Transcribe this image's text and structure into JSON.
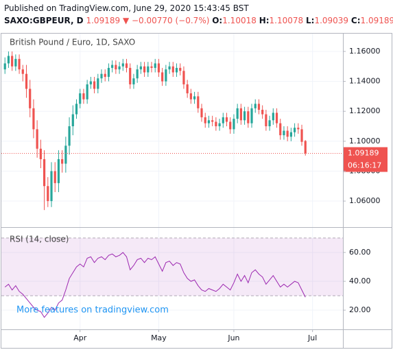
{
  "header": {
    "published": "Published on TradingView.com, June 29, 2020 15:43:45 BST",
    "symbol": "SAXO:GBPEUR, D",
    "arrow": "▼",
    "change": "−0.00770 (−0.7%)",
    "o": "O:",
    "h": "H:",
    "l": "L:",
    "c": "C:"
  },
  "chart_data": [
    {
      "type": "candlestick",
      "title": "British Pound / Euro, 1D, SAXO",
      "up_color": "#26a69a",
      "down_color": "#ef5350",
      "open": [
        1.148,
        1.152,
        1.157,
        1.15,
        1.155,
        1.148,
        1.145,
        1.135,
        1.122,
        1.108,
        1.095,
        1.088,
        1.07,
        1.06,
        1.08,
        1.072,
        1.088,
        1.085,
        1.097,
        1.11,
        1.118,
        1.125,
        1.132,
        1.128,
        1.138,
        1.14,
        1.135,
        1.142,
        1.145,
        1.143,
        1.149,
        1.151,
        1.148,
        1.15,
        1.152,
        1.149,
        1.138,
        1.142,
        1.148,
        1.15,
        1.146,
        1.15,
        1.149,
        1.152,
        1.146,
        1.14,
        1.148,
        1.15,
        1.146,
        1.149,
        1.147,
        1.138,
        1.132,
        1.128,
        1.13,
        1.122,
        1.116,
        1.112,
        1.114,
        1.113,
        1.11,
        1.112,
        1.116,
        1.113,
        1.108,
        1.115,
        1.122,
        1.114,
        1.12,
        1.112,
        1.122,
        1.125,
        1.121,
        1.118,
        1.11,
        1.114,
        1.119,
        1.112,
        1.104,
        1.107,
        1.103,
        1.106,
        1.109,
        1.108,
        1.10018
      ],
      "high": [
        1.156,
        1.16,
        1.16,
        1.158,
        1.158,
        1.151,
        1.151,
        1.141,
        1.128,
        1.114,
        1.101,
        1.094,
        1.076,
        1.086,
        1.086,
        1.094,
        1.094,
        1.103,
        1.116,
        1.124,
        1.128,
        1.135,
        1.135,
        1.141,
        1.143,
        1.143,
        1.145,
        1.148,
        1.148,
        1.152,
        1.154,
        1.154,
        1.153,
        1.155,
        1.155,
        1.152,
        1.145,
        1.151,
        1.153,
        1.153,
        1.153,
        1.153,
        1.155,
        1.155,
        1.149,
        1.151,
        1.153,
        1.153,
        1.152,
        1.152,
        1.15,
        1.141,
        1.135,
        1.133,
        1.133,
        1.125,
        1.119,
        1.117,
        1.117,
        1.116,
        1.115,
        1.119,
        1.119,
        1.116,
        1.118,
        1.125,
        1.125,
        1.123,
        1.123,
        1.125,
        1.128,
        1.128,
        1.124,
        1.121,
        1.117,
        1.122,
        1.122,
        1.115,
        1.11,
        1.11,
        1.109,
        1.112,
        1.112,
        1.111,
        1.10078
      ],
      "low": [
        1.145,
        1.149,
        1.147,
        1.147,
        1.145,
        1.14,
        1.129,
        1.116,
        1.102,
        1.089,
        1.082,
        1.054,
        1.056,
        1.056,
        1.066,
        1.066,
        1.079,
        1.079,
        1.091,
        1.104,
        1.115,
        1.122,
        1.125,
        1.125,
        1.135,
        1.132,
        1.132,
        1.139,
        1.14,
        1.14,
        1.146,
        1.145,
        1.145,
        1.147,
        1.146,
        1.135,
        1.135,
        1.139,
        1.145,
        1.143,
        1.143,
        1.146,
        1.146,
        1.143,
        1.137,
        1.137,
        1.145,
        1.143,
        1.143,
        1.144,
        1.135,
        1.129,
        1.125,
        1.125,
        1.119,
        1.113,
        1.109,
        1.109,
        1.11,
        1.107,
        1.107,
        1.109,
        1.11,
        1.105,
        1.105,
        1.112,
        1.111,
        1.111,
        1.109,
        1.109,
        1.119,
        1.118,
        1.115,
        1.107,
        1.107,
        1.111,
        1.109,
        1.101,
        1.101,
        1.1,
        1.1,
        1.103,
        1.105,
        1.097,
        1.09039
      ],
      "close": [
        1.152,
        1.157,
        1.15,
        1.155,
        1.148,
        1.145,
        1.135,
        1.122,
        1.108,
        1.095,
        1.088,
        1.07,
        1.06,
        1.08,
        1.072,
        1.088,
        1.085,
        1.097,
        1.11,
        1.118,
        1.125,
        1.132,
        1.128,
        1.138,
        1.14,
        1.135,
        1.142,
        1.145,
        1.143,
        1.149,
        1.151,
        1.148,
        1.15,
        1.152,
        1.149,
        1.138,
        1.142,
        1.148,
        1.15,
        1.146,
        1.15,
        1.149,
        1.152,
        1.146,
        1.14,
        1.148,
        1.15,
        1.146,
        1.149,
        1.147,
        1.138,
        1.132,
        1.128,
        1.13,
        1.122,
        1.116,
        1.112,
        1.114,
        1.113,
        1.11,
        1.112,
        1.116,
        1.113,
        1.108,
        1.115,
        1.122,
        1.114,
        1.12,
        1.112,
        1.122,
        1.125,
        1.121,
        1.118,
        1.11,
        1.114,
        1.119,
        1.112,
        1.104,
        1.107,
        1.103,
        1.106,
        1.109,
        1.108,
        1.09959,
        1.09189
      ],
      "xlim": [
        -1,
        94.5
      ],
      "xticks": [
        {
          "value": 21,
          "label": "Apr"
        },
        {
          "value": 43,
          "label": "May"
        },
        {
          "value": 64,
          "label": "Jun"
        },
        {
          "value": 86,
          "label": "Jul"
        }
      ],
      "ylim": [
        1.0426,
        1.1719
      ],
      "yticks": [
        {
          "value": 1.06,
          "label": "1.06000"
        },
        {
          "value": 1.08,
          "label": "1.08000"
        },
        {
          "value": 1.1,
          "label": "1.10000"
        },
        {
          "value": 1.12,
          "label": "1.12000"
        },
        {
          "value": 1.14,
          "label": "1.14000"
        },
        {
          "value": 1.16,
          "label": "1.16000"
        }
      ],
      "countdown": "06:16:17",
      "grid": true
    },
    {
      "type": "line",
      "title": "RSI (14, close)",
      "color": "#9c27b0",
      "band_color": "rgba(156,39,176,0.1)",
      "values": [
        36,
        38,
        34,
        37,
        33,
        31,
        28,
        25,
        22,
        20,
        19,
        15,
        18,
        22,
        20,
        25,
        27,
        34,
        42,
        46,
        50,
        52,
        50,
        56,
        57,
        53,
        56,
        57,
        55,
        58,
        59,
        57,
        58,
        60,
        57,
        48,
        51,
        55,
        56,
        53,
        56,
        55,
        57,
        52,
        47,
        53,
        54,
        51,
        53,
        52,
        46,
        42,
        40,
        41,
        37,
        34,
        33,
        35,
        34,
        33,
        35,
        38,
        36,
        34,
        39,
        45,
        40,
        44,
        39,
        46,
        48,
        45,
        43,
        38,
        41,
        44,
        40,
        36,
        38,
        36,
        38,
        40,
        39,
        34,
        29
      ],
      "bands": [
        30,
        70
      ],
      "ylim": [
        6.7,
        77.1
      ],
      "yticks": [
        {
          "value": 20,
          "label": "20.00"
        },
        {
          "value": 40,
          "label": "40.00"
        },
        {
          "value": 60,
          "label": "60.00"
        }
      ],
      "watermark": "More features on tradingview.com",
      "grid": true
    }
  ]
}
